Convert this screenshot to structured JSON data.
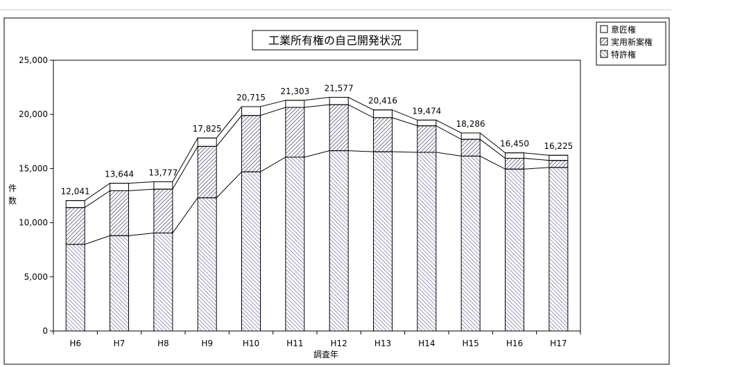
{
  "chart_data": {
    "type": "bar",
    "stacked": true,
    "title": "工業所有権の自己開発状況",
    "xlabel": "調査年",
    "ylabel": "件数",
    "categories": [
      "H6",
      "H7",
      "H8",
      "H9",
      "H10",
      "H11",
      "H12",
      "H13",
      "H14",
      "H15",
      "H16",
      "H17"
    ],
    "series": [
      {
        "name": "特許権",
        "values": [
          8000,
          8800,
          9050,
          12300,
          14700,
          16050,
          16650,
          16550,
          16500,
          16150,
          14950,
          15100
        ]
      },
      {
        "name": "実用新案権",
        "values": [
          3400,
          4150,
          4050,
          4750,
          5200,
          4600,
          4250,
          3150,
          2450,
          1550,
          1000,
          650
        ]
      },
      {
        "name": "意匠権",
        "values": [
          641,
          694,
          677,
          775,
          815,
          653,
          677,
          716,
          524,
          586,
          500,
          475
        ]
      }
    ],
    "totals": [
      "12,041",
      "13,644",
      "13,777",
      "17,825",
      "20,715",
      "21,303",
      "21,577",
      "20,416",
      "19,474",
      "18,286",
      "16,450",
      "16,225"
    ],
    "ylim": [
      0,
      25000
    ],
    "yticks": [
      "0",
      "5,000",
      "10,000",
      "15,000",
      "20,000",
      "25,000"
    ],
    "yticks_values": [
      0,
      5000,
      10000,
      15000,
      20000,
      25000
    ],
    "legend_position": "top-right",
    "grid": false,
    "colors": {
      "patent_hatch": "#5a5a9a",
      "utility_hatch": "#3a3a6a",
      "design_fill": "#ffffff"
    }
  }
}
